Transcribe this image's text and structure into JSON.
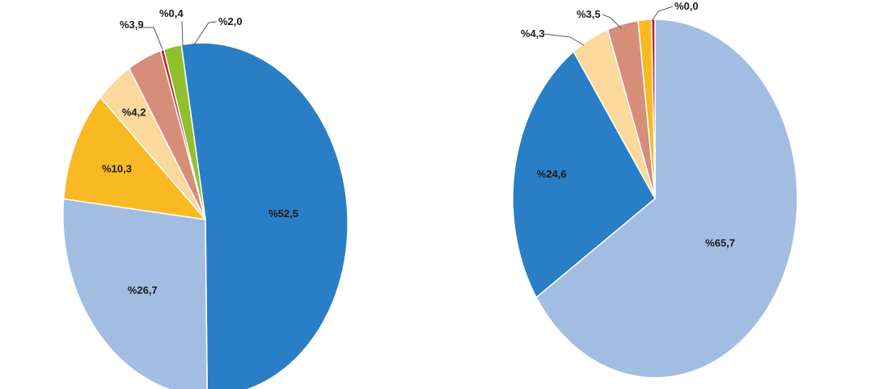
{
  "chart_data": [
    {
      "type": "pie",
      "title": "",
      "slices": [
        {
          "value": 52.5,
          "label": "%52,5",
          "color": "#2a7ec5",
          "label_mode": "inside"
        },
        {
          "value": 26.7,
          "label": "%26,7",
          "color": "#a3bde2",
          "label_mode": "inside"
        },
        {
          "value": 10.3,
          "label": "%10,3",
          "color": "#f8b923",
          "label_mode": "inside"
        },
        {
          "value": 4.2,
          "label": "%4,2",
          "color": "#fbd89c",
          "label_mode": "inside"
        },
        {
          "value": 3.9,
          "label": "%3,9",
          "color": "#d78e79",
          "label_mode": "callout"
        },
        {
          "value": 0.4,
          "label": "%0,4",
          "color": "#c1232b",
          "label_mode": "callout"
        },
        {
          "value": 2.0,
          "label": "%2,0",
          "color": "#91c02e",
          "label_mode": "callout"
        }
      ]
    },
    {
      "type": "pie",
      "title": "",
      "slices": [
        {
          "value": 65.7,
          "label": "%65,7",
          "color": "#a3bde2",
          "label_mode": "inside"
        },
        {
          "value": 24.6,
          "label": "%24,6",
          "color": "#2a7ec5",
          "label_mode": "inside"
        },
        {
          "value": 4.3,
          "label": "%4,3",
          "color": "#fbd89c",
          "label_mode": "callout"
        },
        {
          "value": 3.5,
          "label": "%3,5",
          "color": "#d78e79",
          "label_mode": "callout"
        },
        {
          "value": 1.5,
          "label": "",
          "color": "#f8b923",
          "label_mode": "none"
        },
        {
          "value": 0.4,
          "label": "",
          "color": "#c1232b",
          "label_mode": "none"
        },
        {
          "value": 0.0,
          "label": "%0,0",
          "color": "#91c02e",
          "label_mode": "callout"
        }
      ]
    }
  ]
}
